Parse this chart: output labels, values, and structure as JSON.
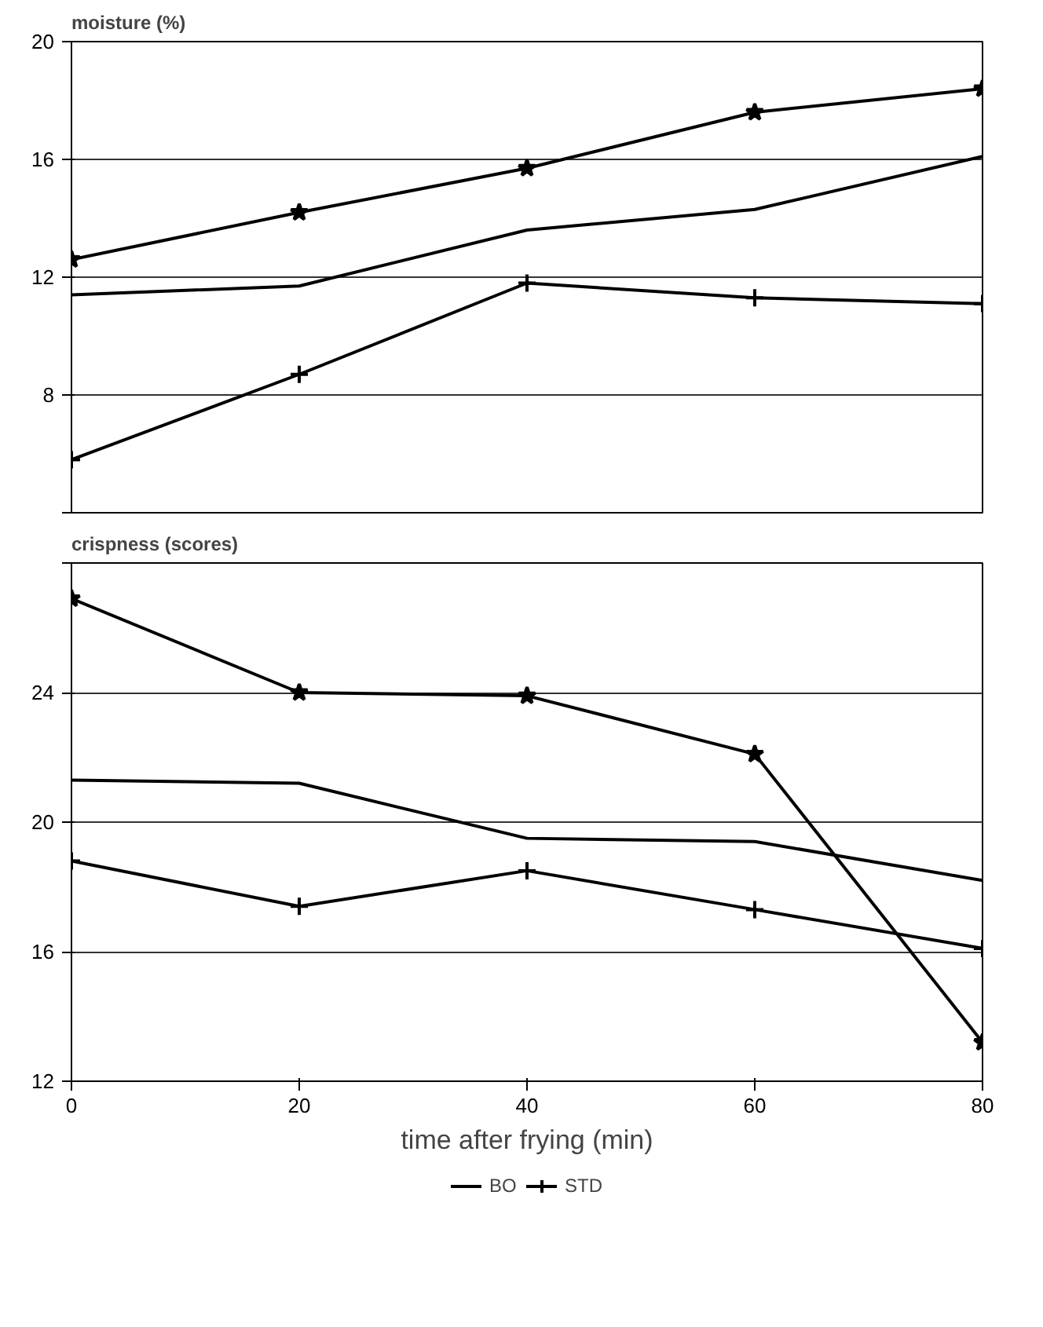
{
  "chart_data": [
    {
      "type": "line",
      "ylabel": "moisture (%)",
      "x": [
        0,
        20,
        40,
        60,
        80
      ],
      "xlim": [
        0,
        80
      ],
      "xticks": [
        0,
        20,
        40,
        60,
        80
      ],
      "ylim": [
        4,
        20
      ],
      "yticks": [
        {
          "value": 4,
          "label": null
        },
        8,
        12,
        16,
        20
      ],
      "tick_labels": "y",
      "grid": "y",
      "legend": false,
      "series": [
        {
          "color": "#000000",
          "marker": "star",
          "values": [
            12.6,
            14.2,
            15.7,
            17.6,
            18.4
          ]
        },
        {
          "color": "#000000",
          "marker": "none",
          "values": [
            11.4,
            11.7,
            13.6,
            14.3,
            16.1
          ]
        },
        {
          "color": "#000000",
          "marker": "cross",
          "values": [
            5.8,
            8.7,
            11.8,
            11.3,
            11.1
          ]
        }
      ]
    },
    {
      "type": "line",
      "ylabel": "crispness (scores)",
      "xlabel": "time after frying (min)",
      "x": [
        0,
        20,
        40,
        60,
        80
      ],
      "xlim": [
        0,
        80
      ],
      "xticks": [
        0,
        20,
        40,
        60,
        80
      ],
      "ylim": [
        12,
        28
      ],
      "yticks": [
        12,
        16,
        20,
        24,
        {
          "value": 28,
          "label": null
        }
      ],
      "grid": "y",
      "legend": "bottom",
      "series": [
        {
          "color": "#000000",
          "marker": "star",
          "values": [
            26.9,
            24.0,
            23.9,
            22.1,
            13.2
          ]
        },
        {
          "name": "BO",
          "color": "#000000",
          "marker": "none",
          "values": [
            21.3,
            21.2,
            19.5,
            19.4,
            18.2
          ]
        },
        {
          "name": "STD",
          "color": "#000000",
          "marker": "cross",
          "values": [
            18.8,
            17.4,
            18.5,
            17.3,
            16.1
          ]
        }
      ]
    }
  ]
}
